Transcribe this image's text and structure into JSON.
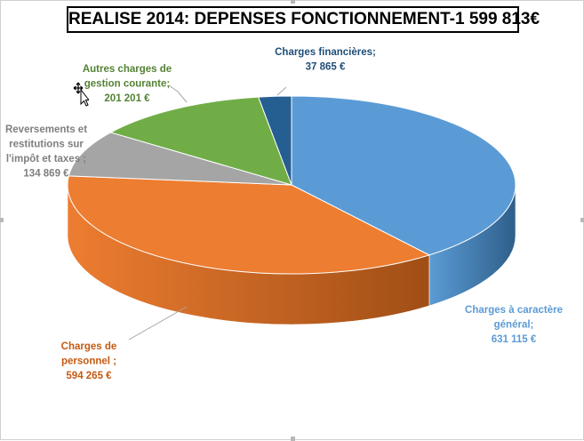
{
  "chart_data": {
    "type": "pie",
    "title": "REALISE 2014: DEPENSES FONCTIONNEMENT-1 599 813€",
    "unit": "€",
    "slices": [
      {
        "name": "Charges à caractère général",
        "value": 631115,
        "label_lines": [
          "Charges à caractère",
          "général;",
          "631 115 €"
        ],
        "color": "#5b9bd5",
        "side": "#2f5f8a",
        "label_color": "#5b9bd5"
      },
      {
        "name": "Charges de personnel",
        "value": 594265,
        "label_lines": [
          "Charges de",
          "personnel ;",
          "594 265 €"
        ],
        "color": "#ed7d31",
        "side": "#a04e16",
        "label_color": "#c55a11"
      },
      {
        "name": "Reversements et restitutions sur l'impôt et taxes",
        "value": 134869,
        "label_lines": [
          "Reversements et",
          "restitutions sur",
          "l'impôt et taxes ;",
          "134 869 €"
        ],
        "color": "#a5a5a5",
        "side": "#6d6d6d",
        "label_color": "#7f7f7f"
      },
      {
        "name": "Autres charges de gestion courante",
        "value": 201201,
        "label_lines": [
          "Autres charges de",
          "gestion courante;",
          "201 201 €"
        ],
        "color": "#70ad47",
        "side": "#476d2c",
        "label_color": "#548235"
      },
      {
        "name": "Charges financières",
        "value": 37865,
        "label_lines": [
          "Charges financières;",
          "37 865 €"
        ],
        "color": "#255e91",
        "side": "#183d5e",
        "label_color": "#1f4e79"
      }
    ],
    "start_angle_deg": 0,
    "direction": "clockwise",
    "legend": "none"
  }
}
